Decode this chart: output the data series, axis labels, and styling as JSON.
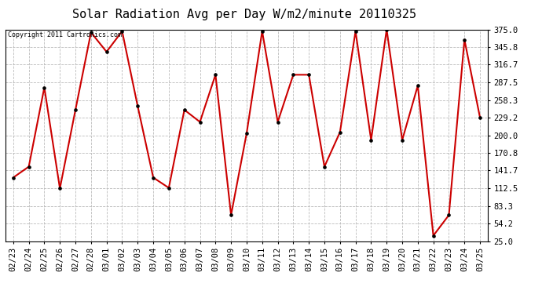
{
  "title": "Solar Radiation Avg per Day W/m2/minute 20110325",
  "copyright": "Copyright 2011 Cartronics.com",
  "dates": [
    "02/23",
    "02/24",
    "02/25",
    "02/26",
    "02/27",
    "02/28",
    "03/01",
    "03/02",
    "03/03",
    "03/04",
    "03/05",
    "03/06",
    "03/07",
    "03/08",
    "03/09",
    "03/10",
    "03/11",
    "03/12",
    "03/13",
    "03/14",
    "03/15",
    "03/16",
    "03/17",
    "03/18",
    "03/19",
    "03/20",
    "03/21",
    "03/22",
    "03/23",
    "03/24",
    "03/25"
  ],
  "values": [
    130,
    148,
    279,
    112,
    242,
    370,
    338,
    372,
    248,
    130,
    113,
    242,
    222,
    300,
    68,
    203,
    372,
    222,
    300,
    300,
    148,
    205,
    372,
    192,
    375,
    192,
    282,
    34,
    68,
    358,
    229
  ],
  "line_color": "#cc0000",
  "marker_color": "#000000",
  "bg_color": "#ffffff",
  "grid_color": "#bbbbbb",
  "yticks": [
    25.0,
    54.2,
    83.3,
    112.5,
    141.7,
    170.8,
    200.0,
    229.2,
    258.3,
    287.5,
    316.7,
    345.8,
    375.0
  ],
  "ylim": [
    25.0,
    375.0
  ],
  "title_fontsize": 11,
  "tick_fontsize": 7.5
}
